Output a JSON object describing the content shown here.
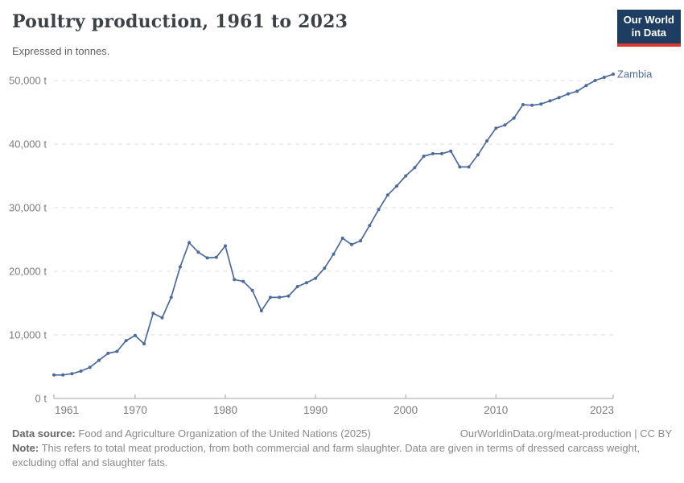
{
  "header": {
    "title": "Poultry production, 1961 to 2023",
    "subtitle": "Expressed in tonnes.",
    "logo": {
      "line1": "Our World",
      "line2": "in Data"
    }
  },
  "chart_data": {
    "type": "line",
    "title": "Poultry production, 1961 to 2023",
    "entity": "Zambia",
    "unit": "tonnes",
    "line_color": "#4C6A9C",
    "grid": "horizontal-dashed",
    "xlim": [
      1961,
      2023
    ],
    "ylim": [
      0,
      50000
    ],
    "x_ticks": [
      {
        "value": 1961,
        "label": "1961",
        "anchor": "start"
      },
      {
        "value": 1970,
        "label": "1970",
        "anchor": "middle"
      },
      {
        "value": 1980,
        "label": "1980",
        "anchor": "middle"
      },
      {
        "value": 1990,
        "label": "1990",
        "anchor": "middle"
      },
      {
        "value": 2000,
        "label": "2000",
        "anchor": "middle"
      },
      {
        "value": 2010,
        "label": "2010",
        "anchor": "middle"
      },
      {
        "value": 2023,
        "label": "2023",
        "anchor": "end"
      }
    ],
    "y_ticks": [
      {
        "value": 0,
        "label": "0 t"
      },
      {
        "value": 10000,
        "label": "10,000 t"
      },
      {
        "value": 20000,
        "label": "20,000 t"
      },
      {
        "value": 30000,
        "label": "30,000 t"
      },
      {
        "value": 40000,
        "label": "40,000 t"
      },
      {
        "value": 50000,
        "label": "50,000 t"
      }
    ],
    "x": [
      1961,
      1962,
      1963,
      1964,
      1965,
      1966,
      1967,
      1968,
      1969,
      1970,
      1971,
      1972,
      1973,
      1974,
      1975,
      1976,
      1977,
      1978,
      1979,
      1980,
      1981,
      1982,
      1983,
      1984,
      1985,
      1986,
      1987,
      1988,
      1989,
      1990,
      1991,
      1992,
      1993,
      1994,
      1995,
      1996,
      1997,
      1998,
      1999,
      2000,
      2001,
      2002,
      2003,
      2004,
      2005,
      2006,
      2007,
      2008,
      2009,
      2010,
      2011,
      2012,
      2013,
      2014,
      2015,
      2016,
      2017,
      2018,
      2019,
      2020,
      2021,
      2022,
      2023
    ],
    "values": [
      3700,
      3700,
      3900,
      4300,
      4900,
      6000,
      7100,
      7400,
      9100,
      9900,
      8600,
      13400,
      12700,
      15900,
      20700,
      24500,
      23000,
      22100,
      22200,
      24000,
      18700,
      18400,
      17000,
      13800,
      15900,
      15900,
      16100,
      17600,
      18200,
      18900,
      20500,
      22700,
      25200,
      24200,
      24800,
      27200,
      29700,
      32000,
      33400,
      35000,
      36300,
      38100,
      38500,
      38500,
      38900,
      36400,
      36400,
      38300,
      40500,
      42500,
      43000,
      44100,
      46200,
      46100,
      46300,
      46800,
      47300,
      47900,
      48300,
      49200,
      50000,
      50500,
      51000
    ]
  },
  "footer": {
    "data_source_label": "Data source:",
    "data_source": "Food and Agriculture Organization of the United Nations (2025)",
    "link": "OurWorldinData.org/meat-production | CC BY",
    "note_label": "Note:",
    "note": "This refers to total meat production, from both commercial and farm slaughter. Data are given in terms of dressed carcass weight, excluding offal and slaughter fats."
  },
  "colors": {
    "line": "#4C6A9C",
    "logo_bg": "#1d3d63",
    "logo_accent": "#dc382e",
    "axis": "#a3a3a3",
    "gridline": "#dcdcdc"
  }
}
